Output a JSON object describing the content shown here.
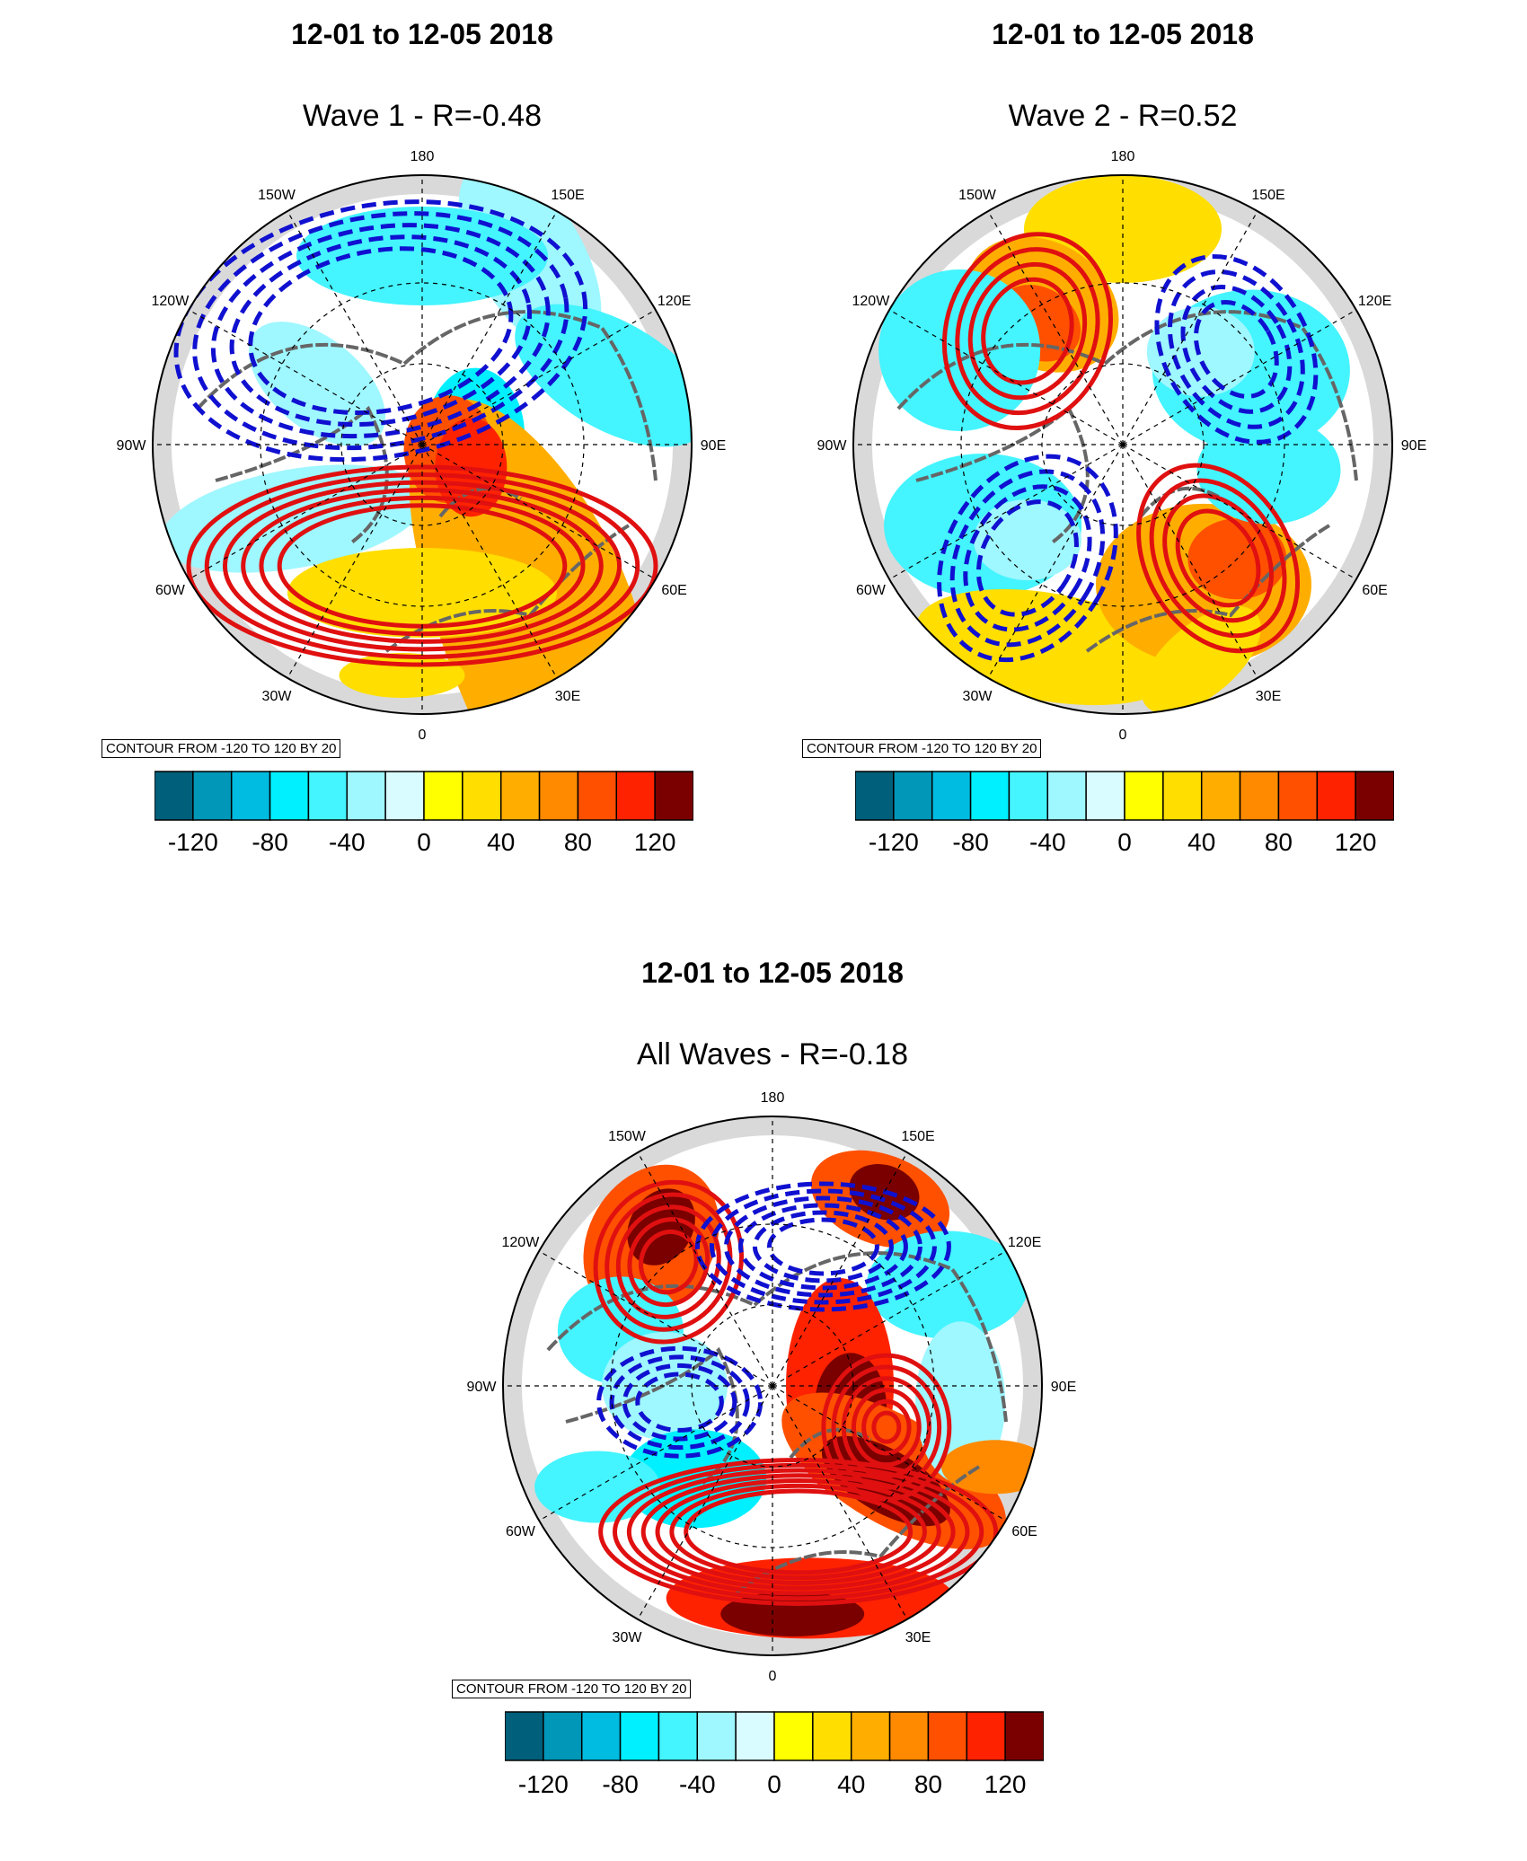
{
  "panels": [
    {
      "date_title": "12-01 to 12-05 2018",
      "wave_title": "Wave 1 - R=-0.48",
      "contour_info": "CONTOUR FROM -120 TO 120 BY 20"
    },
    {
      "date_title": "12-01 to 12-05 2018",
      "wave_title": "Wave 2 - R=0.52",
      "contour_info": "CONTOUR FROM -120 TO 120 BY 20"
    },
    {
      "date_title": "12-01 to 12-05 2018",
      "wave_title": "All Waves - R=-0.18",
      "contour_info": "CONTOUR FROM -120 TO 120 BY 20"
    }
  ],
  "longitude_labels": [
    "180",
    "150E",
    "120E",
    "90E",
    "60E",
    "30E",
    "0",
    "30W",
    "60W",
    "90W",
    "120W",
    "150W"
  ],
  "colorbar": {
    "colors": [
      "#005f7a",
      "#0097b8",
      "#00bce0",
      "#00f0ff",
      "#44f4ff",
      "#9ff7ff",
      "#d8fcff",
      "#ffff00",
      "#ffde00",
      "#ffae00",
      "#ff8a00",
      "#ff5000",
      "#ff2200",
      "#7a0000"
    ],
    "tick_labels": [
      "-120",
      "-80",
      "-40",
      "0",
      "40",
      "80",
      "120"
    ],
    "tick_values": [
      -120,
      -80,
      -40,
      0,
      40,
      80,
      120
    ],
    "range": [
      -140,
      140
    ]
  },
  "map_colors": {
    "land_outline": "#666666",
    "positive_contour": "#e01010",
    "negative_contour": "#1010d0",
    "missing": "#d9d9d9"
  }
}
